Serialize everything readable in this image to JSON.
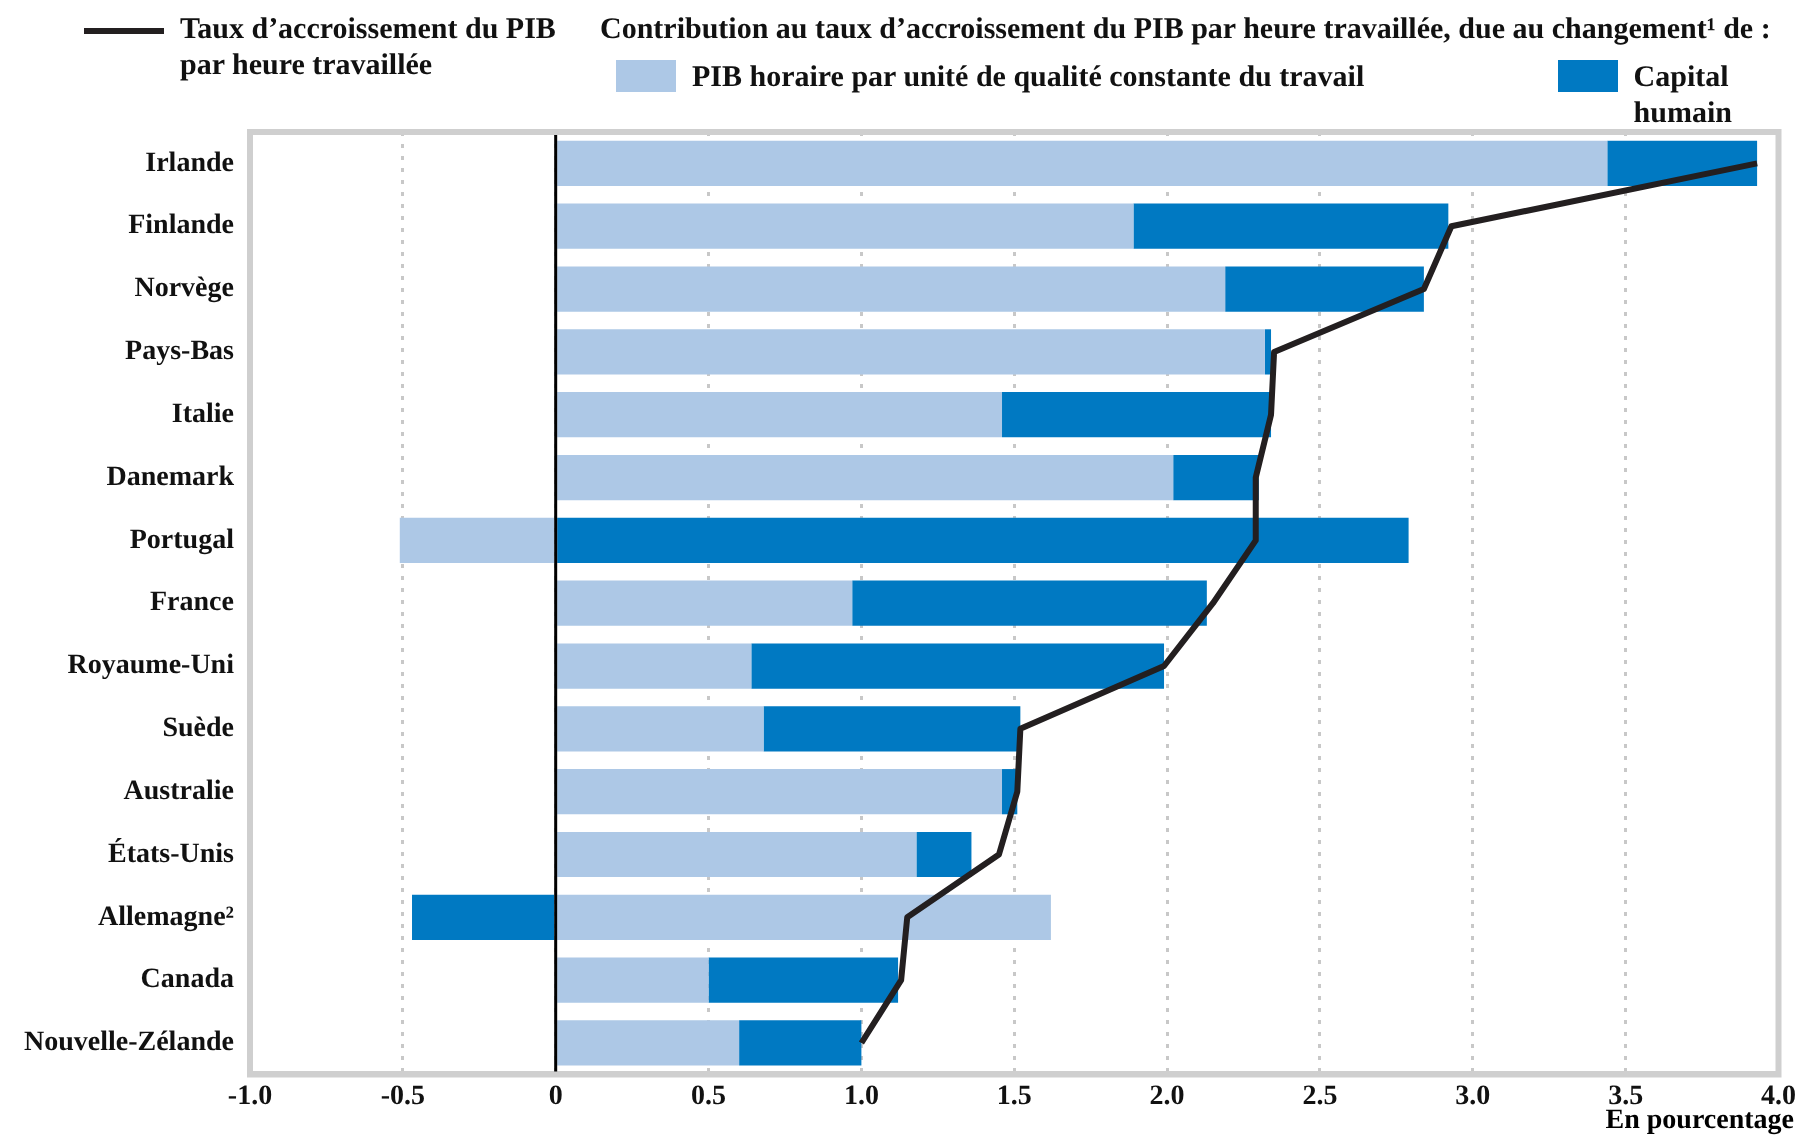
{
  "chart_data": {
    "type": "bar",
    "orientation": "horizontal",
    "stacked": true,
    "categories": [
      "Irlande",
      "Finlande",
      "Norvège",
      "Pays-Bas",
      "Italie",
      "Danemark",
      "Portugal",
      "France",
      "Royaume-Uni",
      "Suède",
      "Australie",
      "États-Unis",
      "Allemagne²",
      "Canada",
      "Nouvelle-Zélande"
    ],
    "series": [
      {
        "name": "PIB horaire par unité de qualité constante du travail",
        "color": "#adc8e6",
        "values": [
          3.44,
          1.89,
          2.19,
          2.32,
          1.46,
          2.02,
          -0.51,
          0.97,
          0.64,
          0.68,
          1.46,
          1.18,
          1.62,
          0.5,
          0.6
        ]
      },
      {
        "name": "Capital humain",
        "color": "#0079c2",
        "values": [
          0.49,
          1.03,
          0.65,
          0.02,
          0.88,
          0.28,
          2.79,
          1.16,
          1.35,
          0.84,
          0.05,
          0.18,
          -0.47,
          0.62,
          0.4
        ]
      },
      {
        "name": "Taux d’accroissement du PIB par heure travaillée",
        "type": "line",
        "color": "#231f20",
        "values": [
          3.93,
          2.93,
          2.84,
          2.35,
          2.34,
          2.29,
          2.29,
          2.15,
          1.99,
          1.52,
          1.51,
          1.45,
          1.15,
          1.13,
          1.0
        ]
      }
    ],
    "legend_title": "Contribution au taux d’accroissement du PIB par heure travaillée, due au changement¹ de :",
    "xlabel": "En pourcentage",
    "xlim": [
      -1.0,
      4.0
    ],
    "xticks": [
      {
        "value": -1,
        "label": "-1.0"
      },
      {
        "value": -0.5,
        "label": "-0.5"
      },
      0,
      {
        "value": 0.5,
        "label": "0.5"
      },
      {
        "value": 1,
        "label": "1.0"
      },
      {
        "value": 1.5,
        "label": "1.5"
      },
      {
        "value": 2,
        "label": "2.0"
      },
      {
        "value": 2.5,
        "label": "2.5"
      },
      {
        "value": 3,
        "label": "3.0"
      },
      {
        "value": 3.5,
        "label": "3.5"
      },
      {
        "value": 4,
        "label": "4.0"
      }
    ],
    "grid": "x",
    "legend": "top",
    "marker": "none",
    "line_style": "solid",
    "ref_lines": [
      {
        "axis": "x",
        "value": 0,
        "color": "#000000"
      }
    ]
  }
}
